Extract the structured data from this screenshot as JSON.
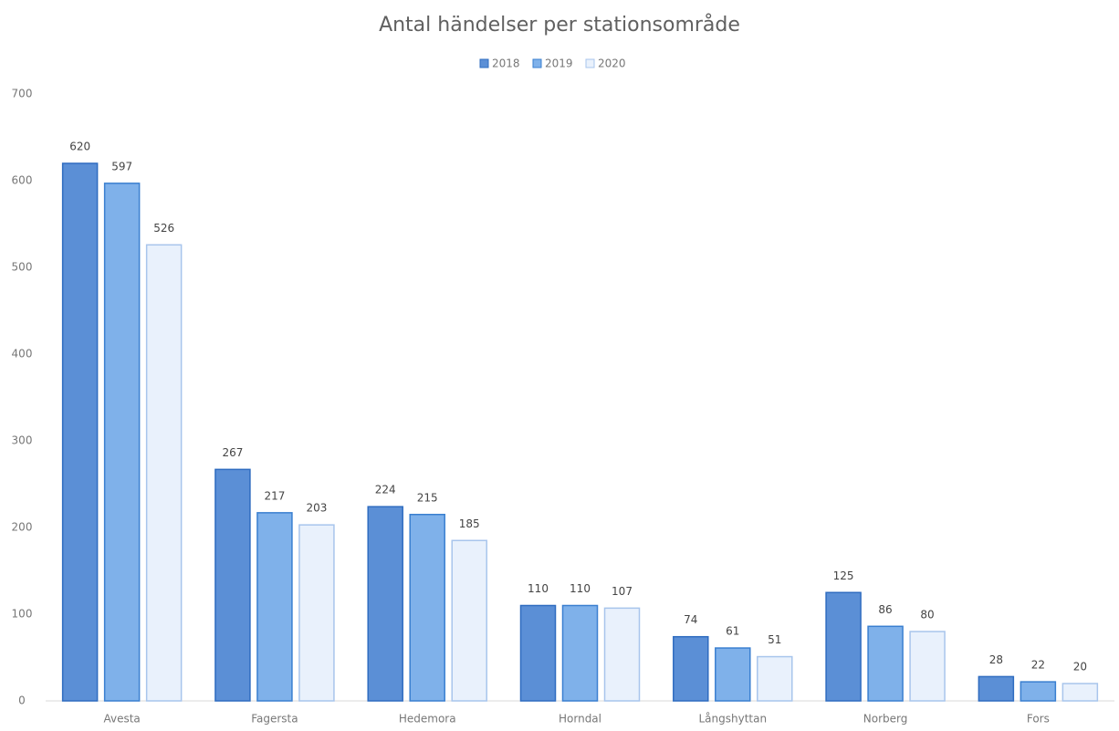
{
  "chart_data": {
    "type": "bar",
    "title": "Antal händelser per stationsområde",
    "categories": [
      "Avesta",
      "Fagersta",
      "Hedemora",
      "Horndal",
      "Långshyttan",
      "Norberg",
      "Fors"
    ],
    "series": [
      {
        "name": "2018",
        "color": "#5b8fd6",
        "values": [
          620,
          267,
          224,
          110,
          74,
          125,
          28
        ]
      },
      {
        "name": "2019",
        "color": "#7fb1ea",
        "values": [
          597,
          217,
          215,
          110,
          61,
          86,
          22
        ]
      },
      {
        "name": "2020",
        "color": "#e9f1fc",
        "values": [
          526,
          203,
          185,
          107,
          51,
          80,
          20
        ]
      }
    ],
    "ylim": [
      0,
      700
    ],
    "yticks": [
      0,
      100,
      200,
      300,
      400,
      500,
      600,
      700
    ]
  }
}
